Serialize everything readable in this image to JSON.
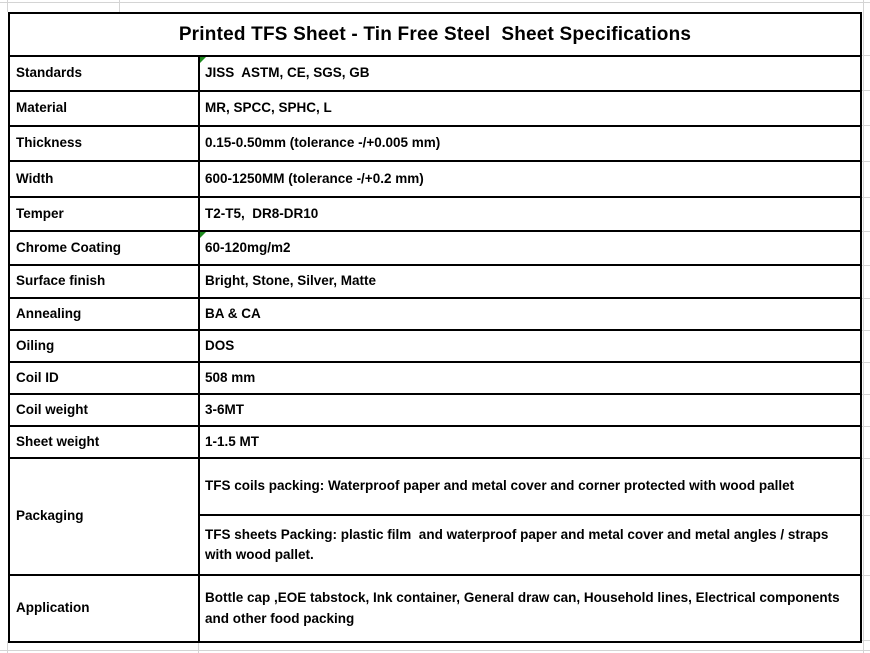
{
  "title": "Printed TFS Sheet - Tin Free Steel  Sheet Specifications",
  "table": {
    "rows": [
      {
        "label": "Standards",
        "value": "JISS  ASTM, CE, SGS, GB"
      },
      {
        "label": "Material",
        "value": "MR, SPCC, SPHC, L"
      },
      {
        "label": "Thickness",
        "value": "0.15-0.50mm (tolerance -/+0.005 mm)"
      },
      {
        "label": "Width",
        "value": "600-1250MM (tolerance -/+0.2 mm)"
      },
      {
        "label": "Temper",
        "value": "T2-T5,  DR8-DR10"
      },
      {
        "label": "Chrome Coating",
        "value": "60-120mg/m2"
      },
      {
        "label": "Surface finish",
        "value": "Bright, Stone, Silver, Matte"
      },
      {
        "label": "Annealing",
        "value": "BA & CA"
      },
      {
        "label": "Oiling",
        "value": "DOS"
      },
      {
        "label": "Coil ID",
        "value": "508 mm"
      },
      {
        "label": "Coil weight",
        "value": "3-6MT"
      },
      {
        "label": "Sheet weight",
        "value": "1-1.5 MT"
      }
    ],
    "packaging": {
      "label": "Packaging",
      "coils_packing": "TFS coils packing: Waterproof paper and metal cover and corner protected with wood pallet",
      "sheets_packing": "TFS sheets Packing: plastic film  and waterproof paper and metal cover and metal angles / straps with wood pallet."
    },
    "application": {
      "label": "Application",
      "value": "Bottle cap ,EOE tabstock, Ink container, General draw can, Household lines, Electrical components and other food packing"
    }
  },
  "icons": {
    "error_indicator": "cell-error-triangle"
  },
  "colors": {
    "border": "#000000",
    "grid": "#d4d4d4",
    "flag": "#1e8a1e",
    "text": "#000000"
  }
}
